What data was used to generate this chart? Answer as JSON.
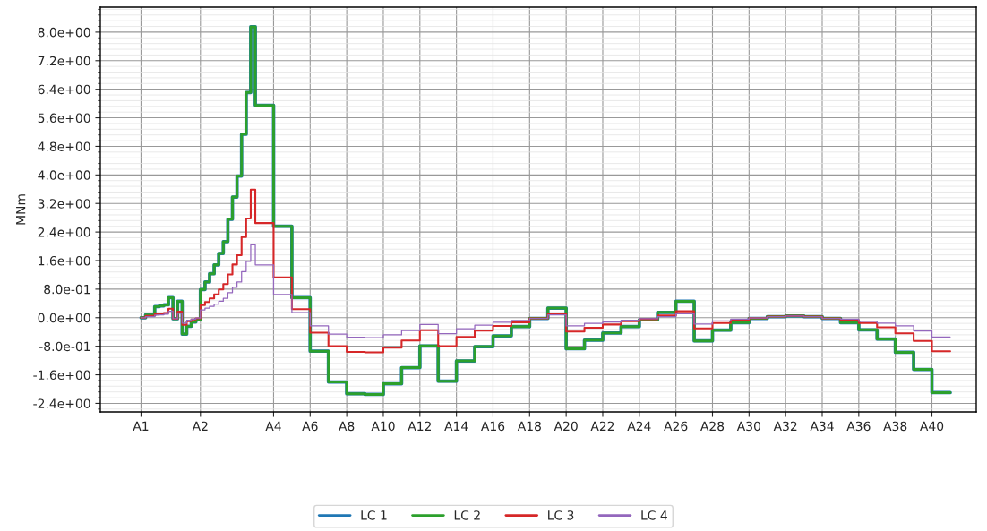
{
  "chart_data": {
    "type": "step",
    "ylabel": "MNm",
    "categories": [
      "A1",
      null,
      null,
      null,
      null,
      null,
      null,
      null,
      null,
      null,
      null,
      null,
      null,
      "A2",
      null,
      null,
      null,
      null,
      null,
      null,
      null,
      null,
      null,
      null,
      null,
      null,
      null,
      null,
      null,
      "A4",
      null,
      null,
      null,
      null,
      null,
      null,
      null,
      "A6",
      null,
      null,
      null,
      null,
      null,
      null,
      null,
      "A8",
      null,
      null,
      null,
      null,
      null,
      null,
      null,
      "A10",
      null,
      null,
      null,
      null,
      null,
      null,
      null,
      "A12",
      null,
      null,
      null,
      null,
      null,
      null,
      null,
      "A14",
      null,
      null,
      null,
      null,
      null,
      null,
      null,
      "A16",
      null,
      null,
      null,
      null,
      null,
      null,
      null,
      "A18",
      null,
      null,
      null,
      null,
      null,
      null,
      null,
      "A20",
      null,
      null,
      null,
      null,
      null,
      null,
      null,
      "A22",
      null,
      null,
      null,
      null,
      null,
      null,
      null,
      "A24",
      null,
      null,
      null,
      null,
      null,
      null,
      null,
      "A26",
      null,
      null,
      null,
      null,
      null,
      null,
      null,
      "A28",
      null,
      null,
      null,
      null,
      null,
      null,
      null,
      "A30",
      null,
      null,
      null,
      null,
      null,
      null,
      null,
      "A32",
      null,
      null,
      null,
      null,
      null,
      null,
      null,
      "A34",
      null,
      null,
      null,
      null,
      null,
      null,
      null,
      "A36",
      null,
      null,
      null,
      null,
      null,
      null,
      null,
      "A38",
      null,
      null,
      null,
      null,
      null,
      null,
      null,
      "A40",
      null,
      null,
      null,
      null
    ],
    "series": [
      {
        "name": "LC 1",
        "color": "#1f77b4",
        "values": [
          0,
          0.08,
          0.08,
          0.31,
          0.33,
          0.36,
          0.56,
          -0.03,
          0.46,
          -0.46,
          -0.24,
          -0.12,
          -0.05,
          0.79,
          1.0,
          1.23,
          1.48,
          1.8,
          2.13,
          2.76,
          3.38,
          3.97,
          5.14,
          6.31,
          8.15,
          5.95,
          5.95,
          5.95,
          5.95,
          2.56,
          2.56,
          2.56,
          2.56,
          0.56,
          0.56,
          0.56,
          0.56,
          -0.94,
          -0.94,
          -0.94,
          -0.94,
          -1.8,
          -1.8,
          -1.8,
          -1.8,
          -2.13,
          -2.13,
          -2.13,
          -2.13,
          -2.15,
          -2.15,
          -2.15,
          -2.15,
          -1.85,
          -1.85,
          -1.85,
          -1.85,
          -1.4,
          -1.4,
          -1.4,
          -1.4,
          -0.79,
          -0.79,
          -0.79,
          -0.79,
          -1.78,
          -1.78,
          -1.78,
          -1.78,
          -1.21,
          -1.21,
          -1.21,
          -1.21,
          -0.81,
          -0.81,
          -0.81,
          -0.81,
          -0.51,
          -0.51,
          -0.51,
          -0.51,
          -0.25,
          -0.25,
          -0.25,
          -0.25,
          -0.02,
          -0.02,
          -0.02,
          -0.02,
          0.27,
          0.27,
          0.27,
          0.27,
          -0.87,
          -0.87,
          -0.87,
          -0.87,
          -0.63,
          -0.63,
          -0.63,
          -0.63,
          -0.43,
          -0.43,
          -0.43,
          -0.43,
          -0.25,
          -0.25,
          -0.25,
          -0.25,
          -0.06,
          -0.06,
          -0.06,
          -0.06,
          0.15,
          0.15,
          0.15,
          0.15,
          0.46,
          0.46,
          0.46,
          0.46,
          -0.65,
          -0.65,
          -0.65,
          -0.65,
          -0.35,
          -0.35,
          -0.35,
          -0.35,
          -0.14,
          -0.14,
          -0.14,
          -0.14,
          -0.02,
          -0.02,
          -0.02,
          -0.02,
          0.03,
          0.03,
          0.03,
          0.03,
          0.05,
          0.05,
          0.05,
          0.05,
          0.03,
          0.03,
          0.03,
          0.03,
          -0.02,
          -0.02,
          -0.02,
          -0.02,
          -0.14,
          -0.14,
          -0.14,
          -0.14,
          -0.34,
          -0.34,
          -0.34,
          -0.34,
          -0.6,
          -0.6,
          -0.6,
          -0.6,
          -0.97,
          -0.97,
          -0.97,
          -0.97,
          -1.45,
          -1.45,
          -1.45,
          -1.45,
          -2.1,
          -2.1,
          -2.1,
          -2.1,
          -2.1
        ]
      },
      {
        "name": "LC 2",
        "color": "#2ca02c",
        "values": [
          0,
          0.08,
          0.08,
          0.31,
          0.33,
          0.36,
          0.56,
          -0.03,
          0.46,
          -0.46,
          -0.24,
          -0.12,
          -0.05,
          0.79,
          1.0,
          1.23,
          1.48,
          1.8,
          2.13,
          2.76,
          3.38,
          3.97,
          5.14,
          6.31,
          8.15,
          5.95,
          5.95,
          5.95,
          5.95,
          2.56,
          2.56,
          2.56,
          2.56,
          0.56,
          0.56,
          0.56,
          0.56,
          -0.94,
          -0.94,
          -0.94,
          -0.94,
          -1.8,
          -1.8,
          -1.8,
          -1.8,
          -2.13,
          -2.13,
          -2.13,
          -2.13,
          -2.15,
          -2.15,
          -2.15,
          -2.15,
          -1.85,
          -1.85,
          -1.85,
          -1.85,
          -1.4,
          -1.4,
          -1.4,
          -1.4,
          -0.79,
          -0.79,
          -0.79,
          -0.79,
          -1.78,
          -1.78,
          -1.78,
          -1.78,
          -1.21,
          -1.21,
          -1.21,
          -1.21,
          -0.81,
          -0.81,
          -0.81,
          -0.81,
          -0.51,
          -0.51,
          -0.51,
          -0.51,
          -0.25,
          -0.25,
          -0.25,
          -0.25,
          -0.02,
          -0.02,
          -0.02,
          -0.02,
          0.27,
          0.27,
          0.27,
          0.27,
          -0.87,
          -0.87,
          -0.87,
          -0.87,
          -0.63,
          -0.63,
          -0.63,
          -0.63,
          -0.43,
          -0.43,
          -0.43,
          -0.43,
          -0.25,
          -0.25,
          -0.25,
          -0.25,
          -0.06,
          -0.06,
          -0.06,
          -0.06,
          0.15,
          0.15,
          0.15,
          0.15,
          0.46,
          0.46,
          0.46,
          0.46,
          -0.65,
          -0.65,
          -0.65,
          -0.65,
          -0.35,
          -0.35,
          -0.35,
          -0.35,
          -0.14,
          -0.14,
          -0.14,
          -0.14,
          -0.02,
          -0.02,
          -0.02,
          -0.02,
          0.03,
          0.03,
          0.03,
          0.03,
          0.05,
          0.05,
          0.05,
          0.05,
          0.03,
          0.03,
          0.03,
          0.03,
          -0.02,
          -0.02,
          -0.02,
          -0.02,
          -0.14,
          -0.14,
          -0.14,
          -0.14,
          -0.34,
          -0.34,
          -0.34,
          -0.34,
          -0.6,
          -0.6,
          -0.6,
          -0.6,
          -0.97,
          -0.97,
          -0.97,
          -0.97,
          -1.45,
          -1.45,
          -1.45,
          -1.45,
          -2.1,
          -2.1,
          -2.1,
          -2.1,
          -2.1
        ]
      },
      {
        "name": "LC 3",
        "color": "#d62728",
        "values": [
          0,
          0.05,
          0.05,
          0.1,
          0.11,
          0.13,
          0.25,
          -0.03,
          0.17,
          -0.2,
          -0.1,
          -0.05,
          -0.02,
          0.35,
          0.44,
          0.54,
          0.65,
          0.79,
          0.94,
          1.21,
          1.49,
          1.75,
          2.26,
          2.78,
          3.59,
          2.65,
          2.65,
          2.65,
          2.65,
          1.13,
          1.13,
          1.13,
          1.13,
          0.24,
          0.24,
          0.24,
          0.24,
          -0.42,
          -0.42,
          -0.42,
          -0.42,
          -0.8,
          -0.8,
          -0.8,
          -0.8,
          -0.96,
          -0.96,
          -0.96,
          -0.96,
          -0.97,
          -0.97,
          -0.97,
          -0.97,
          -0.84,
          -0.84,
          -0.84,
          -0.84,
          -0.64,
          -0.64,
          -0.64,
          -0.64,
          -0.35,
          -0.35,
          -0.35,
          -0.35,
          -0.8,
          -0.8,
          -0.8,
          -0.8,
          -0.54,
          -0.54,
          -0.54,
          -0.54,
          -0.36,
          -0.36,
          -0.36,
          -0.36,
          -0.23,
          -0.23,
          -0.23,
          -0.23,
          -0.13,
          -0.13,
          -0.13,
          -0.13,
          -0.02,
          -0.02,
          -0.02,
          -0.02,
          0.12,
          0.12,
          0.12,
          0.12,
          -0.39,
          -0.39,
          -0.39,
          -0.39,
          -0.28,
          -0.28,
          -0.28,
          -0.28,
          -0.19,
          -0.19,
          -0.19,
          -0.19,
          -0.1,
          -0.1,
          -0.1,
          -0.1,
          -0.04,
          -0.04,
          -0.04,
          -0.04,
          0.06,
          0.06,
          0.06,
          0.06,
          0.18,
          0.18,
          0.18,
          0.18,
          -0.3,
          -0.3,
          -0.3,
          -0.3,
          -0.15,
          -0.15,
          -0.15,
          -0.15,
          -0.07,
          -0.07,
          -0.07,
          -0.07,
          -0.01,
          -0.01,
          -0.01,
          -0.01,
          0.03,
          0.03,
          0.03,
          0.03,
          0.05,
          0.05,
          0.05,
          0.05,
          0.03,
          0.03,
          0.03,
          0.03,
          -0.02,
          -0.02,
          -0.02,
          -0.02,
          -0.07,
          -0.07,
          -0.07,
          -0.07,
          -0.15,
          -0.15,
          -0.15,
          -0.15,
          -0.27,
          -0.27,
          -0.27,
          -0.27,
          -0.44,
          -0.44,
          -0.44,
          -0.44,
          -0.65,
          -0.65,
          -0.65,
          -0.65,
          -0.94,
          -0.94,
          -0.94,
          -0.94,
          -0.94
        ]
      },
      {
        "name": "LC 4",
        "color": "#9467bd",
        "values": [
          0,
          0.03,
          0.03,
          0.07,
          0.08,
          0.1,
          0.18,
          -0.03,
          0.12,
          -0.15,
          -0.07,
          -0.04,
          -0.01,
          0.22,
          0.27,
          0.32,
          0.38,
          0.46,
          0.54,
          0.7,
          0.85,
          1.0,
          1.29,
          1.58,
          2.04,
          1.48,
          1.48,
          1.48,
          1.48,
          0.65,
          0.65,
          0.65,
          0.65,
          0.14,
          0.14,
          0.14,
          0.14,
          -0.23,
          -0.23,
          -0.23,
          -0.23,
          -0.46,
          -0.46,
          -0.46,
          -0.46,
          -0.55,
          -0.55,
          -0.55,
          -0.55,
          -0.56,
          -0.56,
          -0.56,
          -0.56,
          -0.48,
          -0.48,
          -0.48,
          -0.48,
          -0.36,
          -0.36,
          -0.36,
          -0.36,
          -0.19,
          -0.19,
          -0.19,
          -0.19,
          -0.45,
          -0.45,
          -0.45,
          -0.45,
          -0.31,
          -0.31,
          -0.31,
          -0.31,
          -0.21,
          -0.21,
          -0.21,
          -0.21,
          -0.13,
          -0.13,
          -0.13,
          -0.13,
          -0.08,
          -0.08,
          -0.08,
          -0.08,
          -0.02,
          -0.02,
          -0.02,
          -0.02,
          0.08,
          0.08,
          0.08,
          0.08,
          -0.23,
          -0.23,
          -0.23,
          -0.23,
          -0.16,
          -0.16,
          -0.16,
          -0.16,
          -0.12,
          -0.12,
          -0.12,
          -0.12,
          -0.07,
          -0.07,
          -0.07,
          -0.07,
          -0.03,
          -0.03,
          -0.03,
          -0.03,
          0.03,
          0.03,
          0.03,
          0.03,
          0.11,
          0.11,
          0.11,
          0.11,
          -0.18,
          -0.18,
          -0.18,
          -0.18,
          -0.09,
          -0.09,
          -0.09,
          -0.09,
          -0.04,
          -0.04,
          -0.04,
          -0.04,
          -0.01,
          -0.01,
          -0.01,
          -0.01,
          0.03,
          0.03,
          0.03,
          0.03,
          0.05,
          0.05,
          0.05,
          0.05,
          0.03,
          0.03,
          0.03,
          0.03,
          -0.02,
          -0.02,
          -0.02,
          -0.02,
          -0.04,
          -0.04,
          -0.04,
          -0.04,
          -0.1,
          -0.1,
          -0.1,
          -0.1,
          -0.15,
          -0.15,
          -0.15,
          -0.15,
          -0.23,
          -0.23,
          -0.23,
          -0.23,
          -0.37,
          -0.37,
          -0.37,
          -0.37,
          -0.54,
          -0.54,
          -0.54,
          -0.54,
          -0.54
        ]
      }
    ],
    "ylim": [
      -2.64,
      8.7
    ],
    "yticks": [
      {
        "value": -2.4,
        "label": "-2.4e+00"
      },
      {
        "value": -1.6,
        "label": "-1.6e+00"
      },
      {
        "value": -0.8,
        "label": "-8.0e-01"
      },
      {
        "value": 0,
        "label": "0.0e+00"
      },
      {
        "value": 0.8,
        "label": "8.0e-01"
      },
      {
        "value": 1.6,
        "label": "1.6e+00"
      },
      {
        "value": 2.4,
        "label": "2.4e+00"
      },
      {
        "value": 3.2,
        "label": "3.2e+00"
      },
      {
        "value": 4.0,
        "label": "4.0e+00"
      },
      {
        "value": 4.8,
        "label": "4.8e+00"
      },
      {
        "value": 5.6,
        "label": "5.6e+00"
      },
      {
        "value": 6.4,
        "label": "6.4e+00"
      },
      {
        "value": 7.2,
        "label": "7.2e+00"
      },
      {
        "value": 8.0,
        "label": "8.0e+00"
      }
    ],
    "grid": true,
    "legend": "bottom",
    "line_style": "solid"
  }
}
